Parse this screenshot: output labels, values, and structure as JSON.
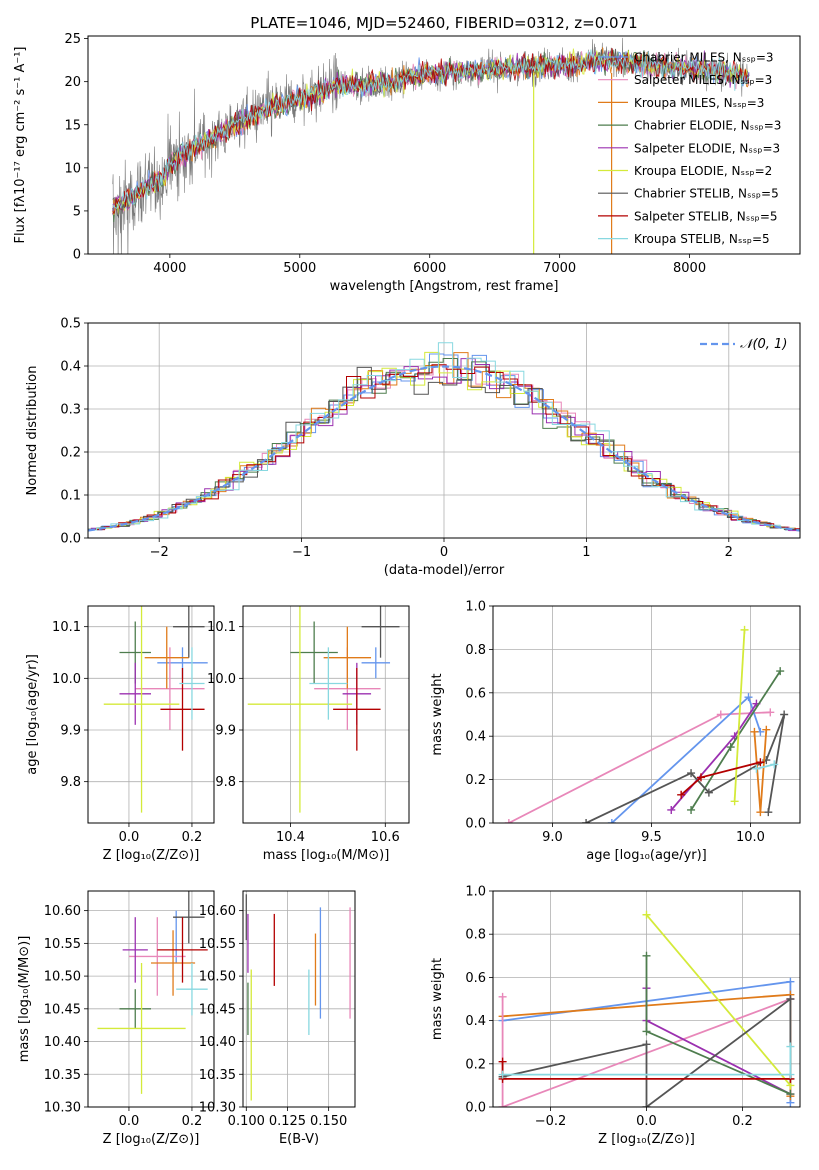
{
  "figure_title": "PLATE=1046, MJD=52460, FIBERID=0312, z=0.071",
  "series_colors": [
    "#6495ED",
    "#E887B9",
    "#E07B1A",
    "#4E7D4E",
    "#9B30B0",
    "#D4EA3A",
    "#555555",
    "#B30000",
    "#88D8E0"
  ],
  "chart_data": [
    {
      "id": "spectrum",
      "type": "line",
      "title": "PLATE=1046, MJD=52460, FIBERID=0312, z=0.071",
      "xlabel": "wavelength [Angstrom, rest frame]",
      "ylabel": "Flux [fλ10⁻¹⁷ erg cm⁻² s⁻¹ A⁻¹]",
      "xlim": [
        3370,
        8850
      ],
      "ylim": [
        0,
        25.3
      ],
      "xticks": [
        4000,
        5000,
        6000,
        7000,
        8000
      ],
      "yticks": [
        0,
        5,
        10,
        15,
        20,
        25
      ],
      "grid": false,
      "legend_position": "right",
      "series": [
        {
          "name": "Chabrier MILES, Nₛₛₚ=3",
          "color": "#6495ED"
        },
        {
          "name": "Salpeter MILES, Nₛₛₚ=3",
          "color": "#E887B9"
        },
        {
          "name": "Kroupa MILES, Nₛₛₚ=3",
          "color": "#E07B1A"
        },
        {
          "name": "Chabrier ELODIE, Nₛₛₚ=3",
          "color": "#4E7D4E"
        },
        {
          "name": "Salpeter ELODIE, Nₛₛₚ=3",
          "color": "#9B30B0"
        },
        {
          "name": "Kroupa ELODIE, Nₛₛₚ=2",
          "color": "#D4EA3A"
        },
        {
          "name": "Chabrier STELIB, Nₛₛₚ=5",
          "color": "#555555"
        },
        {
          "name": "Salpeter STELIB, Nₛₛₚ=5",
          "color": "#B30000"
        },
        {
          "name": "Kroupa STELIB, Nₛₛₚ=5",
          "color": "#88D8E0"
        }
      ],
      "continuum": {
        "x": [
          3550,
          3700,
          3800,
          3900,
          3950,
          4000,
          4100,
          4200,
          4300,
          4500,
          4700,
          4900,
          5100,
          5300,
          5500,
          5700,
          5900,
          6100,
          6300,
          6500,
          6700,
          6900,
          7100,
          7300,
          7500,
          7700,
          7900,
          8100,
          8300,
          8450
        ],
        "y": [
          5.0,
          6.5,
          7.5,
          8.5,
          8.8,
          10.5,
          11.5,
          12.5,
          13.2,
          15.0,
          16.5,
          17.5,
          18.5,
          19.7,
          19.5,
          20.0,
          20.8,
          21.0,
          21.2,
          21.5,
          21.7,
          21.9,
          22.0,
          22.5,
          22.3,
          22.0,
          21.7,
          21.4,
          21.0,
          20.5
        ]
      }
    },
    {
      "id": "residuals",
      "type": "histogram",
      "xlabel": "(data-model)/error",
      "ylabel": "Normed distribution",
      "xlim": [
        -2.5,
        2.5
      ],
      "ylim": [
        0,
        0.5
      ],
      "xticks": [
        -2,
        -1,
        0,
        1,
        2
      ],
      "yticks": [
        0.0,
        0.1,
        0.2,
        0.3,
        0.4,
        0.5
      ],
      "grid": true,
      "legend_position": "top-right",
      "reference_curve": {
        "name": "N(0,1)",
        "label": "𝒩(0, 1)",
        "mean": 0,
        "sigma": 1,
        "color": "#6495ED"
      }
    },
    {
      "id": "age_vs_Z",
      "type": "scatter",
      "xlabel": "Z [log₁₀(Z/Z⊙)]",
      "ylabel": "age  [log₁₀(age/yr)]",
      "xlim": [
        -0.13,
        0.27
      ],
      "ylim": [
        9.72,
        10.14
      ],
      "xticks": [
        0.0,
        0.2
      ],
      "yticks": [
        9.8,
        9.9,
        10.0,
        10.1
      ],
      "grid": true,
      "points": [
        {
          "x": 0.17,
          "y": 10.03,
          "xerr": 0.08,
          "yerr": 0.03,
          "color": "#6495ED"
        },
        {
          "x": 0.13,
          "y": 9.98,
          "xerr": 0.11,
          "yerr": 0.08,
          "color": "#E887B9"
        },
        {
          "x": 0.12,
          "y": 10.04,
          "xerr": 0.07,
          "yerr": 0.06,
          "color": "#E07B1A"
        },
        {
          "x": 0.02,
          "y": 10.05,
          "xerr": 0.05,
          "yerr": 0.06,
          "color": "#4E7D4E"
        },
        {
          "x": 0.02,
          "y": 9.97,
          "xerr": 0.05,
          "yerr": 0.06,
          "color": "#9B30B0"
        },
        {
          "x": 0.04,
          "y": 9.95,
          "xerr": 0.12,
          "yerr": 0.21,
          "color": "#D4EA3A"
        },
        {
          "x": 0.19,
          "y": 10.1,
          "xerr": 0.05,
          "yerr": 0.06,
          "color": "#555555"
        },
        {
          "x": 0.17,
          "y": 9.94,
          "xerr": 0.07,
          "yerr": 0.08,
          "color": "#B30000"
        },
        {
          "x": 0.2,
          "y": 9.99,
          "xerr": 0.04,
          "yerr": 0.07,
          "color": "#88D8E0"
        }
      ]
    },
    {
      "id": "age_vs_mass",
      "type": "scatter",
      "xlabel": "mass [log₁₀(M/M⊙)]",
      "ylabel": "",
      "xlim": [
        10.3,
        10.65
      ],
      "ylim": [
        9.72,
        10.14
      ],
      "xticks": [
        10.4,
        10.6
      ],
      "yticks": [
        9.8,
        9.9,
        10.0,
        10.1
      ],
      "grid": true,
      "points": [
        {
          "x": 10.58,
          "y": 10.03,
          "xerr": 0.03,
          "yerr": 0.03,
          "color": "#6495ED"
        },
        {
          "x": 10.52,
          "y": 9.98,
          "xerr": 0.07,
          "yerr": 0.08,
          "color": "#E887B9"
        },
        {
          "x": 10.52,
          "y": 10.04,
          "xerr": 0.05,
          "yerr": 0.06,
          "color": "#E07B1A"
        },
        {
          "x": 10.45,
          "y": 10.05,
          "xerr": 0.05,
          "yerr": 0.06,
          "color": "#4E7D4E"
        },
        {
          "x": 10.54,
          "y": 9.97,
          "xerr": 0.03,
          "yerr": 0.06,
          "color": "#9B30B0"
        },
        {
          "x": 10.42,
          "y": 9.95,
          "xerr": 0.11,
          "yerr": 0.21,
          "color": "#D4EA3A"
        },
        {
          "x": 10.59,
          "y": 10.1,
          "xerr": 0.04,
          "yerr": 0.06,
          "color": "#555555"
        },
        {
          "x": 10.54,
          "y": 9.94,
          "xerr": 0.05,
          "yerr": 0.08,
          "color": "#B30000"
        },
        {
          "x": 10.48,
          "y": 9.99,
          "xerr": 0.04,
          "yerr": 0.07,
          "color": "#88D8E0"
        }
      ]
    },
    {
      "id": "weight_vs_age",
      "type": "line",
      "xlabel": "age  [log₁₀(age/yr)]",
      "ylabel": "mass weight",
      "xlim": [
        8.7,
        10.25
      ],
      "ylim": [
        0,
        1
      ],
      "xticks": [
        9.0,
        9.5,
        10.0
      ],
      "yticks": [
        0.0,
        0.2,
        0.4,
        0.6,
        0.8,
        1.0
      ],
      "grid": true,
      "series": [
        {
          "color": "#E887B9",
          "points": [
            [
              8.78,
              0.0
            ],
            [
              9.85,
              0.5
            ],
            [
              10.1,
              0.51
            ]
          ]
        },
        {
          "color": "#6495ED",
          "points": [
            [
              9.3,
              0.0
            ],
            [
              9.99,
              0.58
            ],
            [
              10.05,
              0.42
            ]
          ]
        },
        {
          "color": "#9B30B0",
          "points": [
            [
              9.6,
              0.06
            ],
            [
              9.92,
              0.4
            ],
            [
              10.03,
              0.55
            ]
          ]
        },
        {
          "color": "#4E7D4E",
          "points": [
            [
              9.7,
              0.06
            ],
            [
              9.9,
              0.35
            ],
            [
              10.15,
              0.7
            ]
          ]
        },
        {
          "color": "#555555",
          "points": [
            [
              9.17,
              0.0
            ],
            [
              9.7,
              0.23
            ],
            [
              9.79,
              0.14
            ],
            [
              10.08,
              0.29
            ],
            [
              10.17,
              0.5
            ],
            [
              10.09,
              0.05
            ]
          ]
        },
        {
          "color": "#D4EA3A",
          "points": [
            [
              9.92,
              0.1
            ],
            [
              9.97,
              0.89
            ]
          ]
        },
        {
          "color": "#E07B1A",
          "points": [
            [
              10.02,
              0.42
            ],
            [
              10.05,
              0.05
            ],
            [
              10.08,
              0.43
            ]
          ]
        },
        {
          "color": "#B30000",
          "points": [
            [
              9.65,
              0.13
            ],
            [
              9.75,
              0.21
            ],
            [
              10.05,
              0.28
            ]
          ]
        },
        {
          "color": "#88D8E0",
          "points": [
            [
              10.03,
              0.25
            ],
            [
              10.12,
              0.27
            ]
          ]
        }
      ]
    },
    {
      "id": "mass_vs_Z",
      "type": "scatter",
      "xlabel": "Z [log₁₀(Z/Z⊙)]",
      "ylabel": "mass [log₁₀(M/M⊙)]",
      "xlim": [
        -0.13,
        0.27
      ],
      "ylim": [
        10.3,
        10.63
      ],
      "xticks": [
        0.0,
        0.2
      ],
      "yticks": [
        10.3,
        10.35,
        10.4,
        10.45,
        10.5,
        10.55,
        10.6
      ],
      "grid": true,
      "points": [
        {
          "x": 0.15,
          "y": 10.56,
          "xerr": 0.0,
          "yerr": 0.04,
          "color": "#6495ED"
        },
        {
          "x": 0.09,
          "y": 10.53,
          "xerr": 0.09,
          "yerr": 0.06,
          "color": "#E887B9"
        },
        {
          "x": 0.14,
          "y": 10.52,
          "xerr": 0.07,
          "yerr": 0.05,
          "color": "#E07B1A"
        },
        {
          "x": 0.02,
          "y": 10.45,
          "xerr": 0.05,
          "yerr": 0.03,
          "color": "#4E7D4E"
        },
        {
          "x": 0.02,
          "y": 10.54,
          "xerr": 0.04,
          "yerr": 0.05,
          "color": "#9B30B0"
        },
        {
          "x": 0.04,
          "y": 10.42,
          "xerr": 0.14,
          "yerr": 0.1,
          "color": "#D4EA3A"
        },
        {
          "x": 0.19,
          "y": 10.59,
          "xerr": 0.05,
          "yerr": 0.04,
          "color": "#555555"
        },
        {
          "x": 0.17,
          "y": 10.54,
          "xerr": 0.08,
          "yerr": 0.05,
          "color": "#B30000"
        },
        {
          "x": 0.2,
          "y": 10.48,
          "xerr": 0.05,
          "yerr": 0.04,
          "color": "#88D8E0"
        }
      ]
    },
    {
      "id": "mass_vs_ebv",
      "type": "scatter",
      "xlabel": "E(B-V)",
      "ylabel": "",
      "xlim": [
        0.098,
        0.166
      ],
      "ylim": [
        10.3,
        10.63
      ],
      "xticks": [
        0.1,
        0.125,
        0.15
      ],
      "yticks": [
        10.3,
        10.35,
        10.4,
        10.45,
        10.5,
        10.55,
        10.6
      ],
      "grid": true,
      "points": [
        {
          "x": 0.145,
          "y": 10.52,
          "xerr": 0,
          "yerr": 0.085,
          "color": "#6495ED"
        },
        {
          "x": 0.163,
          "y": 10.52,
          "xerr": 0,
          "yerr": 0.085,
          "color": "#E887B9"
        },
        {
          "x": 0.142,
          "y": 10.51,
          "xerr": 0,
          "yerr": 0.055,
          "color": "#E07B1A"
        },
        {
          "x": 0.101,
          "y": 10.45,
          "xerr": 0,
          "yerr": 0.04,
          "color": "#4E7D4E"
        },
        {
          "x": 0.101,
          "y": 10.55,
          "xerr": 0,
          "yerr": 0.045,
          "color": "#9B30B0"
        },
        {
          "x": 0.103,
          "y": 10.41,
          "xerr": 0,
          "yerr": 0.1,
          "color": "#D4EA3A"
        },
        {
          "x": 0.1,
          "y": 10.59,
          "xerr": 0,
          "yerr": 0.035,
          "color": "#555555"
        },
        {
          "x": 0.117,
          "y": 10.54,
          "xerr": 0,
          "yerr": 0.055,
          "color": "#B30000"
        },
        {
          "x": 0.138,
          "y": 10.46,
          "xerr": 0,
          "yerr": 0.05,
          "color": "#88D8E0"
        }
      ]
    },
    {
      "id": "weight_vs_Z",
      "type": "line",
      "xlabel": "Z [log₁₀(Z/Z⊙)]",
      "ylabel": "mass weight",
      "xlim": [
        -0.32,
        0.32
      ],
      "ylim": [
        0,
        1
      ],
      "xticks": [
        -0.2,
        0.0,
        0.2
      ],
      "yticks": [
        0.0,
        0.2,
        0.4,
        0.6,
        0.8,
        1.0
      ],
      "grid": true,
      "series": [
        {
          "color": "#6495ED",
          "points": [
            [
              -0.3,
              0.4
            ],
            [
              0.3,
              0.58
            ],
            [
              0.3,
              0.02
            ]
          ]
        },
        {
          "color": "#E07B1A",
          "points": [
            [
              -0.3,
              0.42
            ],
            [
              0.3,
              0.52
            ],
            [
              0.3,
              0.05
            ]
          ]
        },
        {
          "color": "#E887B9",
          "points": [
            [
              -0.3,
              0.51
            ],
            [
              -0.3,
              0.0
            ],
            [
              0.3,
              0.5
            ]
          ]
        },
        {
          "color": "#9B30B0",
          "points": [
            [
              0.0,
              0.55
            ],
            [
              0.0,
              0.4
            ],
            [
              0.3,
              0.06
            ]
          ]
        },
        {
          "color": "#4E7D4E",
          "points": [
            [
              0.0,
              0.7
            ],
            [
              0.0,
              0.35
            ],
            [
              0.3,
              0.06
            ]
          ]
        },
        {
          "color": "#D4EA3A",
          "points": [
            [
              0.0,
              0.89
            ],
            [
              0.3,
              0.1
            ]
          ]
        },
        {
          "color": "#555555",
          "points": [
            [
              -0.3,
              0.14
            ],
            [
              0.0,
              0.29
            ],
            [
              0.0,
              0.0
            ],
            [
              0.3,
              0.5
            ],
            [
              0.3,
              0.13
            ]
          ]
        },
        {
          "color": "#B30000",
          "points": [
            [
              -0.3,
              0.21
            ],
            [
              -0.3,
              0.13
            ],
            [
              0.3,
              0.13
            ]
          ]
        },
        {
          "color": "#88D8E0",
          "points": [
            [
              -0.3,
              0.15
            ],
            [
              0.3,
              0.15
            ],
            [
              0.3,
              0.28
            ]
          ]
        }
      ]
    }
  ]
}
